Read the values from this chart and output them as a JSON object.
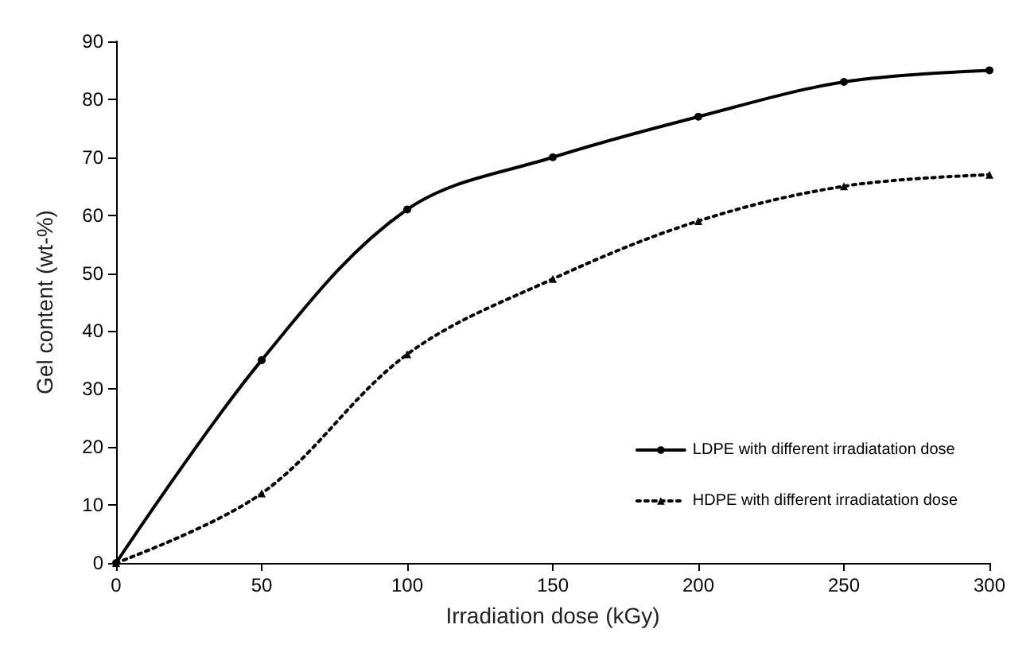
{
  "chart_data": {
    "type": "line",
    "xlabel": "Irradiation dose (kGy)",
    "ylabel": "Gel content (wt-%)",
    "x": [
      0,
      50,
      100,
      150,
      200,
      250,
      300
    ],
    "series": [
      {
        "name": "LDPE with different irradiatation dose",
        "color": "#000000",
        "marker": "circle",
        "line_style": "solid",
        "values": [
          0,
          35,
          61,
          70,
          77,
          83,
          85
        ]
      },
      {
        "name": "HDPE with different irradiatation dose",
        "color": "#000000",
        "marker": "triangle",
        "line_style": "dotted",
        "values": [
          0,
          12,
          36,
          49,
          59,
          65,
          67
        ]
      }
    ],
    "xlim": [
      0,
      300
    ],
    "xticks": [
      0,
      50,
      100,
      150,
      200,
      250,
      300
    ],
    "ylim": [
      0,
      90
    ],
    "yticks": [
      0,
      10,
      20,
      30,
      40,
      50,
      60,
      70,
      80,
      90
    ],
    "grid": false,
    "legend": "bottom right"
  }
}
